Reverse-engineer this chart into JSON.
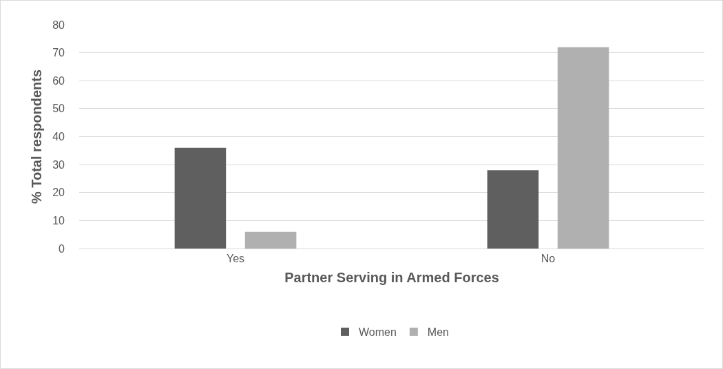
{
  "chart_data": {
    "type": "bar",
    "xlabel": "Partner Serving in Armed Forces",
    "ylabel": "% Total respondents",
    "categories": [
      "Yes",
      "No"
    ],
    "series": [
      {
        "name": "Women",
        "color": "#5f5f5f",
        "values": [
          36,
          28
        ]
      },
      {
        "name": "Men",
        "color": "#b0b0b0",
        "values": [
          6,
          72
        ]
      }
    ],
    "ylim": [
      0,
      80
    ],
    "yticks": [
      0,
      10,
      20,
      30,
      40,
      50,
      60,
      70,
      80
    ],
    "grid": "y",
    "legend": "bottom"
  }
}
